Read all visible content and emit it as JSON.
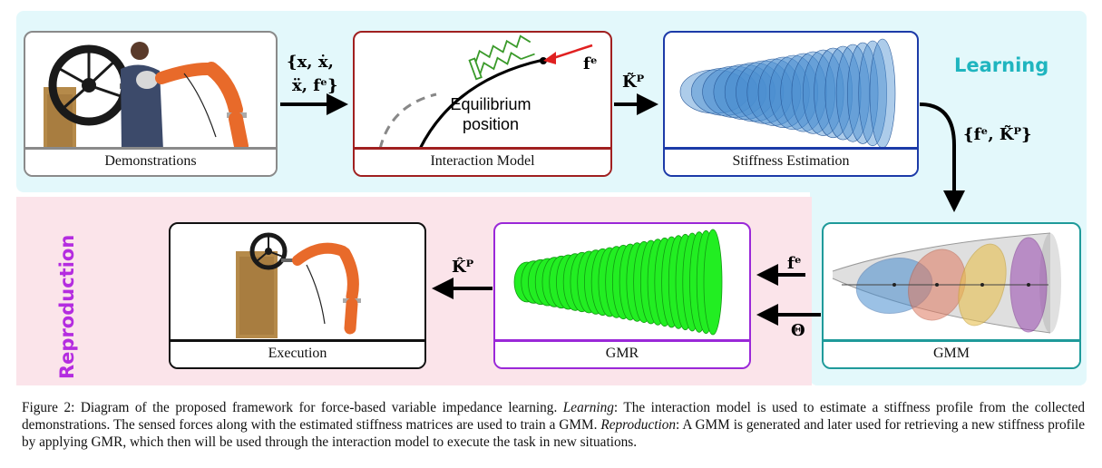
{
  "sections": {
    "learning": "Learning",
    "reproduction": "Reproduction"
  },
  "panels": {
    "demonstrations": "Demonstrations",
    "interaction_model": "Interaction Model",
    "stiffness_estimation": "Stiffness Estimation",
    "gmm": "GMM",
    "gmr": "GMR",
    "execution": "Execution"
  },
  "interaction_labels": {
    "equilibrium_line1": "Equilibrium",
    "equilibrium_line2": "position",
    "force": "fᵉ"
  },
  "edge_labels": {
    "demo_to_model_line1": "{x, ẋ,",
    "demo_to_model_line2": "ẍ, fᵉ}",
    "model_to_stiffness": "K̃ᴾ",
    "stiffness_to_gmm": "{fᵉ, K̃ᴾ}",
    "force_input": "fᵉ",
    "theta_input": "Θ",
    "gmr_to_execution": "K̂ᴾ"
  },
  "caption": {
    "lead": "Figure 2: Diagram of the proposed framework for force-based variable impedance learning. ",
    "learning_term": "Learning",
    "learning_text": ": The interaction model is used to estimate a stiffness profile from the collected demonstrations. The sensed forces along with the estimated stiffness matrices are used to train a GMM. ",
    "reproduction_term": "Reproduction",
    "reproduction_text": ": A GMM is generated and later used for retrieving a new stiffness profile by applying GMR, which then will be used through the interaction model to execute the task in new situations."
  },
  "colors": {
    "learning_bg": "#e3f8fb",
    "reproduction_bg": "#fbe4ea",
    "learning_text": "#1fb5bf",
    "reproduction_text": "#b42ce0",
    "interaction_border": "#a02020",
    "stiffness_border": "#1c3aa8",
    "gmm_border": "#1f9a9a",
    "gmr_border": "#9a28d8",
    "ellipse_blue": "#4a8fd0",
    "gmr_green": "#22ee22",
    "spring_green": "#3a9a2a",
    "force_red": "#e02020"
  }
}
